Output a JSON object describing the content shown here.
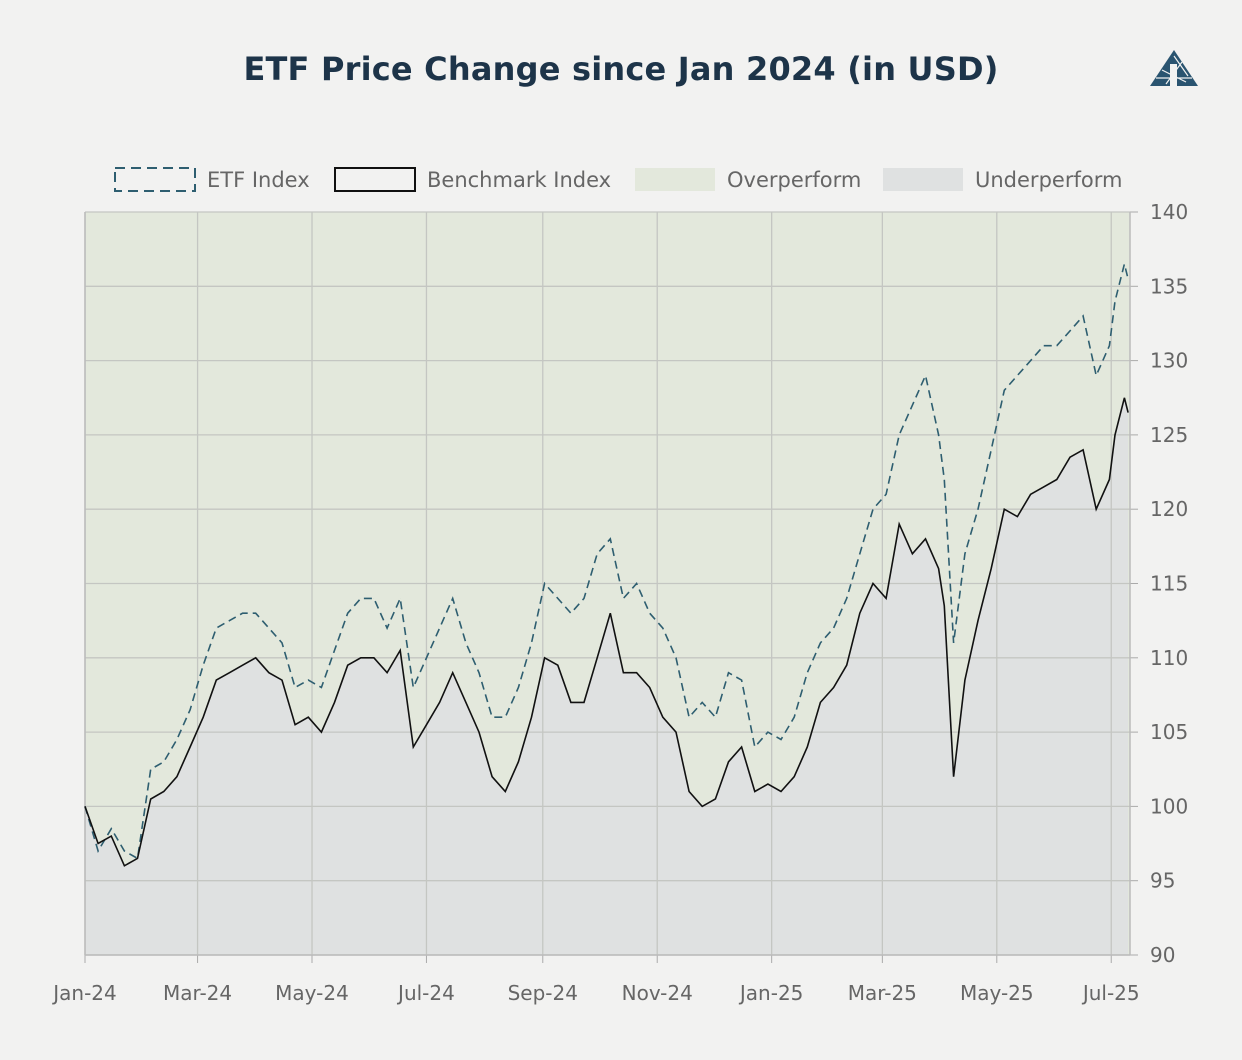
{
  "chart_data": {
    "type": "line",
    "title": "ETF Price Change since Jan 2024 (in USD)",
    "xlabel": "",
    "ylabel": "",
    "ylim": [
      90,
      140
    ],
    "yticks": [
      90,
      95,
      100,
      105,
      110,
      115,
      120,
      125,
      130,
      135,
      140
    ],
    "xlim": [
      "2024-01-01",
      "2025-07-11"
    ],
    "xticks": [
      {
        "date": "2024-01-01",
        "label": "Jan-24"
      },
      {
        "date": "2024-03-01",
        "label": "Mar-24"
      },
      {
        "date": "2024-05-01",
        "label": "May-24"
      },
      {
        "date": "2024-07-01",
        "label": "Jul-24"
      },
      {
        "date": "2024-09-01",
        "label": "Sep-24"
      },
      {
        "date": "2024-11-01",
        "label": "Nov-24"
      },
      {
        "date": "2025-01-01",
        "label": "Jan-25"
      },
      {
        "date": "2025-03-01",
        "label": "Mar-25"
      },
      {
        "date": "2025-05-01",
        "label": "May-25"
      },
      {
        "date": "2025-07-01",
        "label": "Jul-25"
      }
    ],
    "y_axis_side": "right",
    "grid": true,
    "legend_position": "top",
    "legend": [
      "ETF Index",
      "Benchmark Index",
      "Overperform",
      "Underperform"
    ],
    "colors": {
      "etf": "#2e5e70",
      "benchmark": "#111111",
      "overperform": "#e3e8dc",
      "underperform": "#dfe1e1",
      "title": "#1d3449"
    },
    "x": [
      "2024-01-01",
      "2024-01-08",
      "2024-01-15",
      "2024-01-22",
      "2024-01-29",
      "2024-02-05",
      "2024-02-12",
      "2024-02-19",
      "2024-02-26",
      "2024-03-04",
      "2024-03-11",
      "2024-03-18",
      "2024-03-25",
      "2024-04-01",
      "2024-04-08",
      "2024-04-15",
      "2024-04-22",
      "2024-04-29",
      "2024-05-06",
      "2024-05-13",
      "2024-05-20",
      "2024-05-27",
      "2024-06-03",
      "2024-06-10",
      "2024-06-17",
      "2024-06-24",
      "2024-07-01",
      "2024-07-08",
      "2024-07-15",
      "2024-07-22",
      "2024-07-29",
      "2024-08-05",
      "2024-08-12",
      "2024-08-19",
      "2024-08-26",
      "2024-09-02",
      "2024-09-09",
      "2024-09-16",
      "2024-09-23",
      "2024-09-30",
      "2024-10-07",
      "2024-10-14",
      "2024-10-21",
      "2024-10-28",
      "2024-11-04",
      "2024-11-11",
      "2024-11-18",
      "2024-11-25",
      "2024-12-02",
      "2024-12-09",
      "2024-12-16",
      "2024-12-23",
      "2024-12-30",
      "2025-01-06",
      "2025-01-13",
      "2025-01-20",
      "2025-01-27",
      "2025-02-03",
      "2025-02-10",
      "2025-02-17",
      "2025-02-24",
      "2025-03-03",
      "2025-03-10",
      "2025-03-17",
      "2025-03-24",
      "2025-03-31",
      "2025-04-03",
      "2025-04-08",
      "2025-04-14",
      "2025-04-21",
      "2025-04-28",
      "2025-05-05",
      "2025-05-12",
      "2025-05-19",
      "2025-05-26",
      "2025-06-02",
      "2025-06-09",
      "2025-06-16",
      "2025-06-23",
      "2025-06-30",
      "2025-07-03",
      "2025-07-08",
      "2025-07-10"
    ],
    "series": [
      {
        "name": "ETF Index",
        "style": "dashed",
        "values": [
          100,
          97,
          98.5,
          97,
          96.5,
          102.5,
          103,
          104.5,
          106.5,
          109.5,
          112,
          112.5,
          113,
          113,
          112,
          111,
          108,
          108.5,
          108,
          110.5,
          113,
          114,
          114,
          112,
          114,
          108,
          110,
          112,
          114,
          111,
          109,
          106,
          106,
          108,
          111,
          115,
          114,
          113,
          114,
          117,
          118,
          114,
          115,
          113,
          112,
          110,
          106,
          107,
          106,
          109,
          108.5,
          104,
          105,
          104.5,
          106,
          109,
          111,
          112,
          114,
          117,
          120,
          121,
          125,
          127,
          129,
          125,
          122,
          111,
          117,
          120,
          124,
          128,
          129,
          130,
          131,
          131,
          132,
          133,
          129,
          131,
          134,
          136.5,
          135.5
        ]
      },
      {
        "name": "Benchmark Index",
        "style": "solid",
        "values": [
          100,
          97.5,
          98,
          96,
          96.5,
          100.5,
          101,
          102,
          104,
          106,
          108.5,
          109,
          109.5,
          110,
          109,
          108.5,
          105.5,
          106,
          105,
          107,
          109.5,
          110,
          110,
          109,
          110.5,
          104,
          105.5,
          107,
          109,
          107,
          105,
          102,
          101,
          103,
          106,
          110,
          109.5,
          107,
          107,
          110,
          113,
          109,
          109,
          108,
          106,
          105,
          101,
          100,
          100.5,
          103,
          104,
          101,
          101.5,
          101,
          102,
          104,
          107,
          108,
          109.5,
          113,
          115,
          114,
          119,
          117,
          118,
          116,
          113.5,
          102,
          108.5,
          112.5,
          116,
          120,
          119.5,
          121,
          121.5,
          122,
          123.5,
          124,
          120,
          122,
          125,
          127.5,
          126.5
        ]
      }
    ]
  }
}
